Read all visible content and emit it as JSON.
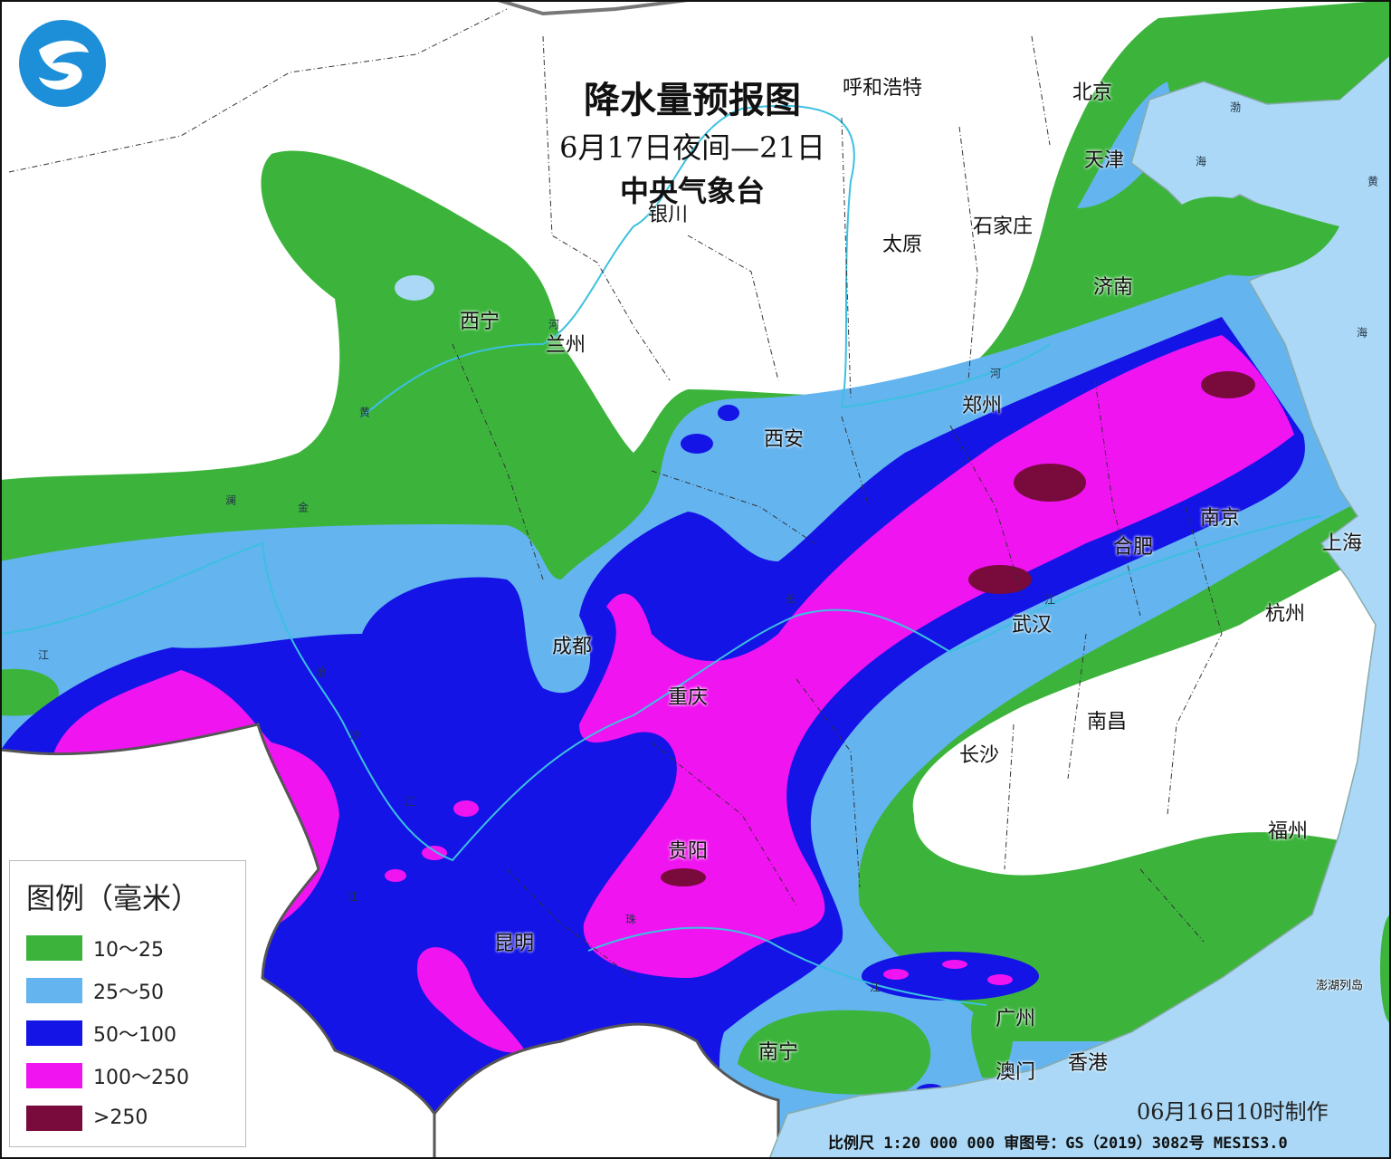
{
  "title": {
    "main": "降水量预报图",
    "period": "6月17日夜间—21日",
    "issuer": "中央气象台"
  },
  "cities": [
    "呼和浩特",
    "北京",
    "天津",
    "石家庄",
    "太原",
    "银川",
    "济南",
    "西宁",
    "兰州",
    "郑州",
    "西安",
    "南京",
    "合肥",
    "上海",
    "成都",
    "武汉",
    "杭州",
    "重庆",
    "南昌",
    "长沙",
    "福州",
    "贵阳",
    "昆明",
    "广州",
    "南宁",
    "澳门",
    "香港",
    "澎湖列岛"
  ],
  "geo_labels": [
    "渤",
    "海",
    "黄",
    "海",
    "河",
    "黄",
    "河",
    "澜",
    "金",
    "长",
    "江",
    "江",
    "沧",
    "沙",
    "江",
    "江",
    "珠",
    "江"
  ],
  "legend": {
    "title": "图例（毫米）",
    "items": [
      {
        "label": "10～25",
        "color": "#3cb43c"
      },
      {
        "label": "25～50",
        "color": "#64b4f0"
      },
      {
        "label": "50～100",
        "color": "#1414e6"
      },
      {
        "label": "100～250",
        "color": "#f014f0"
      },
      {
        "label": ">250",
        "color": "#780a3c"
      }
    ]
  },
  "made_time": "06月16日10时制作",
  "footer": "比例尺 1:20 000 000  审图号：GS（2019）3082号 MESIS3.0",
  "colors": {
    "sea": "#aad8f6",
    "land": "#ffffff",
    "river": "#3cc0e0"
  }
}
